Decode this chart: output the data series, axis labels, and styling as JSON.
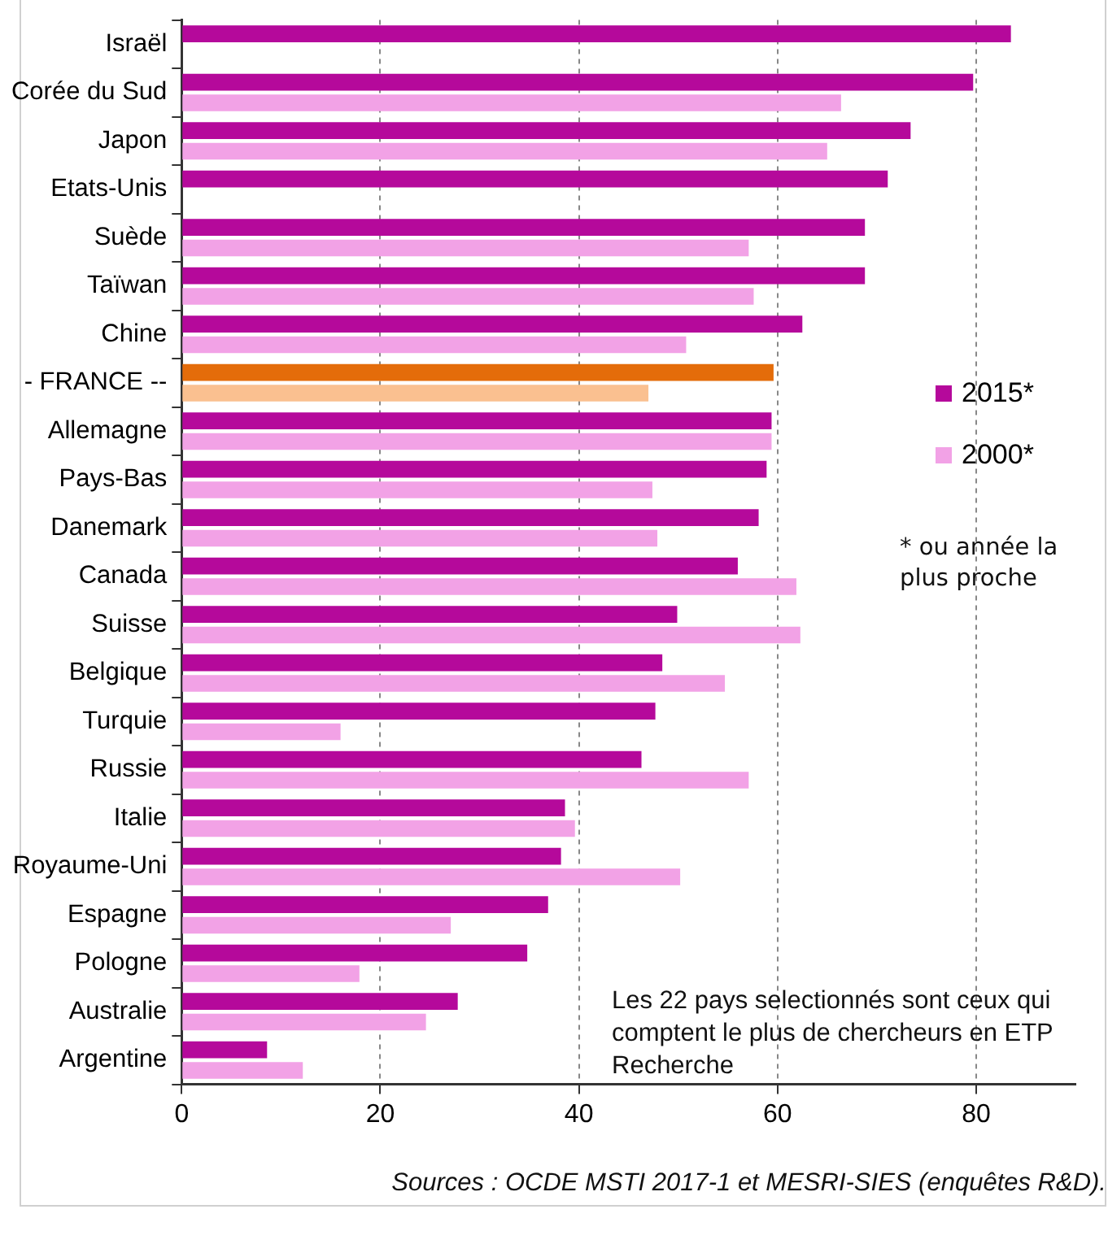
{
  "chart_data": {
    "type": "bar",
    "orientation": "horizontal",
    "categories": [
      "Israël",
      "Corée du Sud",
      "Japon",
      "Etats-Unis",
      "Suède",
      "Taïwan",
      "Chine",
      "- FRANCE --",
      "Allemagne",
      "Pays-Bas",
      "Danemark",
      "Canada",
      "Suisse",
      "Belgique",
      "Turquie",
      "Russie",
      "Italie",
      "Royaume-Uni",
      "Espagne",
      "Pologne",
      "Australie",
      "Argentine"
    ],
    "series": [
      {
        "name": "2015*",
        "color": "#b5099b",
        "colors": [
          "#b5099b",
          "#b5099b",
          "#b5099b",
          "#b5099b",
          "#b5099b",
          "#b5099b",
          "#b5099b",
          "#e46c0a",
          "#b5099b",
          "#b5099b",
          "#b5099b",
          "#b5099b",
          "#b5099b",
          "#b5099b",
          "#b5099b",
          "#b5099b",
          "#b5099b",
          "#b5099b",
          "#b5099b",
          "#b5099b",
          "#b5099b",
          "#b5099b"
        ],
        "values": [
          83.5,
          79.7,
          73.4,
          71.1,
          68.8,
          68.8,
          62.5,
          59.6,
          59.4,
          58.9,
          58.1,
          56.0,
          49.9,
          48.4,
          47.7,
          46.3,
          38.6,
          38.2,
          36.9,
          34.8,
          27.8,
          8.6
        ]
      },
      {
        "name": "2000*",
        "color": "#f2a2e6",
        "colors": [
          "#f2a2e6",
          "#f2a2e6",
          "#f2a2e6",
          "#f2a2e6",
          "#f2a2e6",
          "#f2a2e6",
          "#f2a2e6",
          "#fac090",
          "#f2a2e6",
          "#f2a2e6",
          "#f2a2e6",
          "#f2a2e6",
          "#f2a2e6",
          "#f2a2e6",
          "#f2a2e6",
          "#f2a2e6",
          "#f2a2e6",
          "#f2a2e6",
          "#f2a2e6",
          "#f2a2e6",
          "#f2a2e6",
          "#f2a2e6"
        ],
        "values": [
          null,
          66.4,
          65.0,
          null,
          57.1,
          57.6,
          50.8,
          47.0,
          59.4,
          47.4,
          47.9,
          61.9,
          62.3,
          54.7,
          16.0,
          57.1,
          39.6,
          50.2,
          27.1,
          17.9,
          24.6,
          12.2
        ]
      }
    ],
    "xlim": [
      0,
      90
    ],
    "xticks": [
      0,
      20,
      40,
      60,
      80
    ],
    "grid": "x",
    "legend": "right",
    "annotations": [
      "* ou année la plus proche",
      "Les 22 pays selectionnés sont ceux qui comptent le plus de chercheurs en ETP Recherche",
      "Sources : OCDE MSTI 2017-1 et MESRI-SIES (enquêtes R&D)."
    ]
  }
}
